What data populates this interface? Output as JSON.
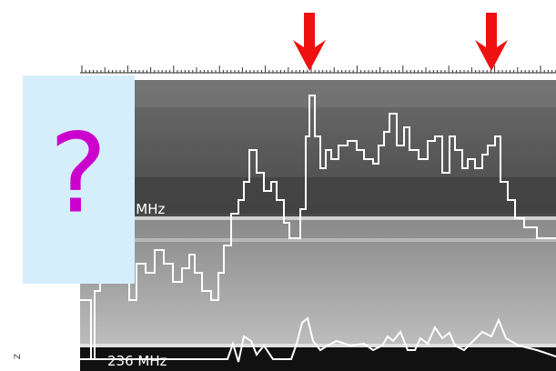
{
  "overlay": {
    "symbol": "?"
  },
  "labels": {
    "upper_band": "4 MHz",
    "lower_band": "236 MHz"
  },
  "side_label": "Z"
}
